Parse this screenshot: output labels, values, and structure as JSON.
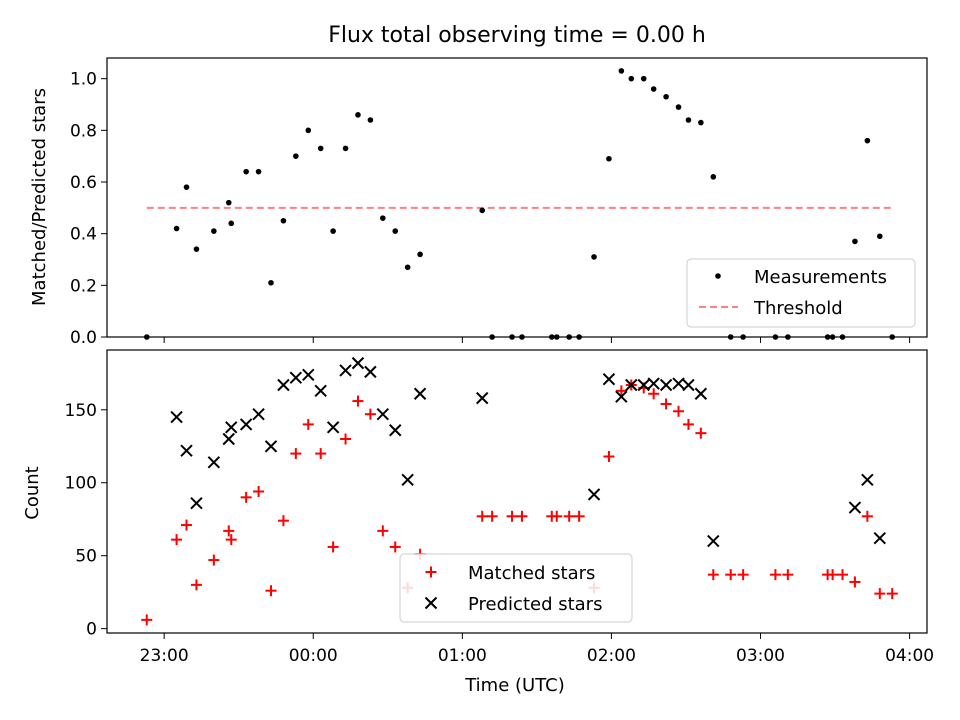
{
  "chart_data": [
    {
      "type": "scatter",
      "title": "Flux total observing time = 0.00 h",
      "xlabel": "",
      "ylabel": "Matched/Predicted stars",
      "ylim": [
        0,
        1.08
      ],
      "yticks": [
        0.0,
        0.2,
        0.4,
        0.6,
        0.8,
        1.0
      ],
      "ytick_labels": [
        "0.0",
        "0.2",
        "0.4",
        "0.6",
        "0.8",
        "1.0"
      ],
      "x_unit": "minutes since 00:00 UTC",
      "xlim": [
        -83,
        247
      ],
      "legend_position": "lower-right",
      "series": [
        {
          "name": "Measurements",
          "color": "#000000",
          "marker": "dot",
          "points": [
            [
              -67,
              0.0
            ],
            [
              -55,
              0.42
            ],
            [
              -51,
              0.58
            ],
            [
              -47,
              0.34
            ],
            [
              -40,
              0.41
            ],
            [
              -34,
              0.52
            ],
            [
              -33,
              0.44
            ],
            [
              -27,
              0.64
            ],
            [
              -22,
              0.64
            ],
            [
              -17,
              0.21
            ],
            [
              -12,
              0.45
            ],
            [
              -7,
              0.7
            ],
            [
              -2,
              0.8
            ],
            [
              3,
              0.73
            ],
            [
              8,
              0.41
            ],
            [
              13,
              0.73
            ],
            [
              18,
              0.86
            ],
            [
              23,
              0.84
            ],
            [
              28,
              0.46
            ],
            [
              33,
              0.41
            ],
            [
              38,
              0.27
            ],
            [
              43,
              0.32
            ],
            [
              68,
              0.49
            ],
            [
              72,
              0.0
            ],
            [
              80,
              0.0
            ],
            [
              84,
              0.0
            ],
            [
              96,
              0.0
            ],
            [
              98,
              0.0
            ],
            [
              103,
              0.0
            ],
            [
              107,
              0.0
            ],
            [
              113,
              0.31
            ],
            [
              119,
              0.69
            ],
            [
              124,
              1.03
            ],
            [
              128,
              1.0
            ],
            [
              133,
              1.0
            ],
            [
              137,
              0.96
            ],
            [
              142,
              0.93
            ],
            [
              147,
              0.89
            ],
            [
              151,
              0.84
            ],
            [
              156,
              0.83
            ],
            [
              161,
              0.62
            ],
            [
              168,
              0.0
            ],
            [
              173,
              0.0
            ],
            [
              186,
              0.0
            ],
            [
              191,
              0.0
            ],
            [
              207,
              0.0
            ],
            [
              209,
              0.0
            ],
            [
              213,
              0.0
            ],
            [
              218,
              0.37
            ],
            [
              223,
              0.76
            ],
            [
              228,
              0.39
            ],
            [
              233,
              0.0
            ]
          ]
        },
        {
          "name": "Threshold",
          "color": "#ff8080",
          "style": "dashed",
          "points": [
            [
              -67,
              0.5
            ],
            [
              233,
              0.5
            ]
          ]
        }
      ]
    },
    {
      "type": "scatter",
      "title": "",
      "xlabel": "Time (UTC)",
      "ylabel": "Count",
      "ylim": [
        -3,
        191
      ],
      "yticks": [
        0,
        50,
        100,
        150
      ],
      "ytick_labels": [
        "0",
        "50",
        "100",
        "150"
      ],
      "x_unit": "minutes since 00:00 UTC",
      "xlim": [
        -83,
        247
      ],
      "xticks": [
        -60,
        0,
        60,
        120,
        180,
        240
      ],
      "xtick_labels": [
        "23:00",
        "00:00",
        "01:00",
        "02:00",
        "03:00",
        "04:00"
      ],
      "legend_position": "lower-center",
      "series": [
        {
          "name": "Matched stars",
          "color": "#ff0000",
          "marker": "plus",
          "points": [
            [
              -67,
              6
            ],
            [
              -55,
              61
            ],
            [
              -51,
              71
            ],
            [
              -47,
              30
            ],
            [
              -40,
              47
            ],
            [
              -34,
              67
            ],
            [
              -33,
              61
            ],
            [
              -27,
              90
            ],
            [
              -22,
              94
            ],
            [
              -17,
              26
            ],
            [
              -12,
              74
            ],
            [
              -7,
              120
            ],
            [
              -2,
              140
            ],
            [
              3,
              120
            ],
            [
              8,
              56
            ],
            [
              13,
              130
            ],
            [
              18,
              156
            ],
            [
              23,
              147
            ],
            [
              28,
              67
            ],
            [
              33,
              56
            ],
            [
              38,
              28
            ],
            [
              43,
              51
            ],
            [
              68,
              77
            ],
            [
              72,
              77
            ],
            [
              80,
              77
            ],
            [
              84,
              77
            ],
            [
              96,
              77
            ],
            [
              98,
              77
            ],
            [
              103,
              77
            ],
            [
              107,
              77
            ],
            [
              113,
              28
            ],
            [
              119,
              118
            ],
            [
              124,
              163
            ],
            [
              128,
              167
            ],
            [
              133,
              165
            ],
            [
              137,
              161
            ],
            [
              142,
              154
            ],
            [
              147,
              149
            ],
            [
              151,
              140
            ],
            [
              156,
              134
            ],
            [
              161,
              37
            ],
            [
              168,
              37
            ],
            [
              173,
              37
            ],
            [
              186,
              37
            ],
            [
              191,
              37
            ],
            [
              207,
              37
            ],
            [
              209,
              37
            ],
            [
              213,
              37
            ],
            [
              218,
              32
            ],
            [
              223,
              77
            ],
            [
              228,
              24
            ],
            [
              233,
              24
            ]
          ]
        },
        {
          "name": "Predicted stars",
          "color": "#000000",
          "marker": "x",
          "points": [
            [
              -55,
              145
            ],
            [
              -51,
              122
            ],
            [
              -47,
              86
            ],
            [
              -40,
              114
            ],
            [
              -34,
              130
            ],
            [
              -33,
              138
            ],
            [
              -27,
              140
            ],
            [
              -22,
              147
            ],
            [
              -17,
              125
            ],
            [
              -12,
              167
            ],
            [
              -7,
              172
            ],
            [
              -2,
              174
            ],
            [
              3,
              163
            ],
            [
              8,
              138
            ],
            [
              13,
              177
            ],
            [
              18,
              182
            ],
            [
              23,
              176
            ],
            [
              28,
              147
            ],
            [
              33,
              136
            ],
            [
              38,
              102
            ],
            [
              43,
              161
            ],
            [
              68,
              158
            ],
            [
              113,
              92
            ],
            [
              119,
              171
            ],
            [
              124,
              159
            ],
            [
              128,
              167
            ],
            [
              133,
              167
            ],
            [
              137,
              168
            ],
            [
              142,
              167
            ],
            [
              147,
              168
            ],
            [
              151,
              167
            ],
            [
              156,
              161
            ],
            [
              161,
              60
            ],
            [
              218,
              83
            ],
            [
              223,
              102
            ],
            [
              228,
              62
            ]
          ]
        }
      ]
    }
  ]
}
